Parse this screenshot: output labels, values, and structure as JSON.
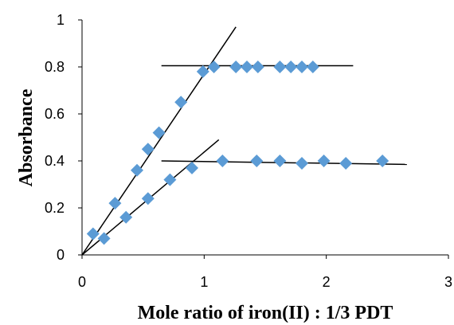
{
  "chart_data": {
    "type": "scatter",
    "title": "",
    "xlabel": "Mole ratio of iron(II) : 1/3 PDT",
    "ylabel": "Absorbance",
    "xlim": [
      0,
      3
    ],
    "ylim": [
      0,
      1
    ],
    "x_ticks": [
      "0",
      "1",
      "2",
      "3"
    ],
    "y_ticks": [
      "0",
      "0.2",
      "0.4",
      "0.6",
      "0.8",
      "1"
    ],
    "grid": false,
    "legend": "none",
    "marker_color": "#5B9BD5",
    "marker_shape": "diamond",
    "series": [
      {
        "points": [
          {
            "x": 0.09,
            "y": 0.09
          },
          {
            "x": 0.27,
            "y": 0.22
          },
          {
            "x": 0.45,
            "y": 0.36
          },
          {
            "x": 0.54,
            "y": 0.45
          },
          {
            "x": 0.63,
            "y": 0.52
          },
          {
            "x": 0.81,
            "y": 0.65
          },
          {
            "x": 0.99,
            "y": 0.78
          },
          {
            "x": 1.08,
            "y": 0.8
          },
          {
            "x": 1.26,
            "y": 0.8
          },
          {
            "x": 1.35,
            "y": 0.8
          },
          {
            "x": 1.44,
            "y": 0.8
          },
          {
            "x": 1.62,
            "y": 0.8
          },
          {
            "x": 1.71,
            "y": 0.8
          },
          {
            "x": 1.8,
            "y": 0.8
          },
          {
            "x": 1.89,
            "y": 0.8
          }
        ]
      },
      {
        "points": [
          {
            "x": 0.18,
            "y": 0.07
          },
          {
            "x": 0.36,
            "y": 0.16
          },
          {
            "x": 0.54,
            "y": 0.24
          },
          {
            "x": 0.72,
            "y": 0.32
          },
          {
            "x": 0.9,
            "y": 0.37
          },
          {
            "x": 1.15,
            "y": 0.4
          },
          {
            "x": 1.43,
            "y": 0.4
          },
          {
            "x": 1.62,
            "y": 0.4
          },
          {
            "x": 1.8,
            "y": 0.39
          },
          {
            "x": 1.98,
            "y": 0.4
          },
          {
            "x": 2.16,
            "y": 0.39
          },
          {
            "x": 2.46,
            "y": 0.4
          }
        ]
      }
    ],
    "lines": [
      {
        "x1": 0.0,
        "y1": 0.0,
        "x2": 1.26,
        "y2": 0.97
      },
      {
        "x1": 0.65,
        "y1": 0.805,
        "x2": 2.22,
        "y2": 0.805
      },
      {
        "x1": 0.0,
        "y1": 0.0,
        "x2": 1.12,
        "y2": 0.49
      },
      {
        "x1": 0.65,
        "y1": 0.4,
        "x2": 2.66,
        "y2": 0.385
      }
    ]
  }
}
